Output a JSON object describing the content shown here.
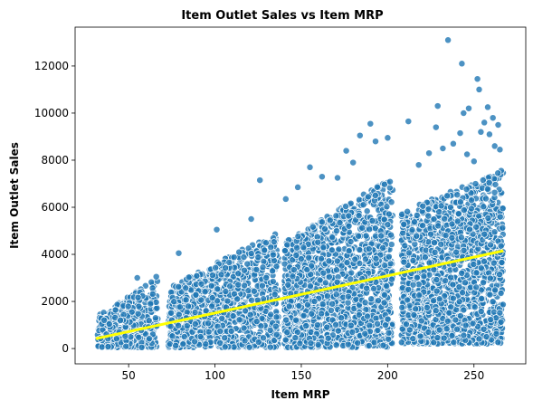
{
  "chart_data": {
    "type": "scatter",
    "title": "Item Outlet Sales vs Item MRP",
    "xlabel": "Item MRP",
    "ylabel": "Item Outlet Sales",
    "xlim": [
      19,
      280
    ],
    "ylim": [
      -650,
      13650
    ],
    "x_ticks": [
      50,
      100,
      150,
      200,
      250
    ],
    "y_ticks": [
      0,
      2000,
      4000,
      6000,
      8000,
      10000,
      12000
    ],
    "x_tick_labels": [
      "50",
      "100",
      "150",
      "200",
      "250"
    ],
    "y_tick_labels": [
      "0",
      "2000",
      "4000",
      "6000",
      "8000",
      "10000",
      "12000"
    ],
    "grid": false,
    "point_color": "#1f77b4",
    "trend_color": "#ffff00",
    "trend_line": {
      "x": [
        31,
        267
      ],
      "y": [
        420,
        4150
      ]
    },
    "clusters": [
      {
        "x_range": [
          32,
          67
        ],
        "y_min": 50,
        "y_max_start": 1400,
        "y_max_end": 3000,
        "count": 420
      },
      {
        "x_range": [
          73,
          137
        ],
        "y_min": 50,
        "y_max_start": 2600,
        "y_max_end": 5000,
        "count": 1100
      },
      {
        "x_range": [
          140,
          203
        ],
        "y_min": 50,
        "y_max_start": 4500,
        "y_max_end": 7300,
        "count": 1600
      },
      {
        "x_range": [
          208,
          267
        ],
        "y_min": 200,
        "y_max_start": 5800,
        "y_max_end": 7600,
        "count": 1600
      }
    ],
    "outliers": [
      {
        "x": 126,
        "y": 7150
      },
      {
        "x": 121,
        "y": 5500
      },
      {
        "x": 101,
        "y": 5050
      },
      {
        "x": 155,
        "y": 7700
      },
      {
        "x": 171,
        "y": 7250
      },
      {
        "x": 176,
        "y": 8400
      },
      {
        "x": 180,
        "y": 7900
      },
      {
        "x": 184,
        "y": 9050
      },
      {
        "x": 190,
        "y": 9550
      },
      {
        "x": 193,
        "y": 8800
      },
      {
        "x": 200,
        "y": 8950
      },
      {
        "x": 212,
        "y": 9650
      },
      {
        "x": 218,
        "y": 7800
      },
      {
        "x": 224,
        "y": 8300
      },
      {
        "x": 228,
        "y": 9400
      },
      {
        "x": 229,
        "y": 10300
      },
      {
        "x": 232,
        "y": 8500
      },
      {
        "x": 235,
        "y": 13100
      },
      {
        "x": 238,
        "y": 8700
      },
      {
        "x": 242,
        "y": 9150
      },
      {
        "x": 243,
        "y": 12100
      },
      {
        "x": 244,
        "y": 10000
      },
      {
        "x": 247,
        "y": 10200
      },
      {
        "x": 252,
        "y": 11450
      },
      {
        "x": 253,
        "y": 11000
      },
      {
        "x": 254,
        "y": 9200
      },
      {
        "x": 256,
        "y": 9600
      },
      {
        "x": 258,
        "y": 10250
      },
      {
        "x": 259,
        "y": 9100
      },
      {
        "x": 261,
        "y": 9800
      },
      {
        "x": 262,
        "y": 8600
      },
      {
        "x": 264,
        "y": 9500
      },
      {
        "x": 265,
        "y": 8450
      },
      {
        "x": 246,
        "y": 8250
      },
      {
        "x": 250,
        "y": 7950
      },
      {
        "x": 66,
        "y": 3050
      },
      {
        "x": 55,
        "y": 3000
      },
      {
        "x": 79,
        "y": 4050
      },
      {
        "x": 141,
        "y": 6350
      },
      {
        "x": 148,
        "y": 6850
      },
      {
        "x": 162,
        "y": 7300
      }
    ]
  }
}
